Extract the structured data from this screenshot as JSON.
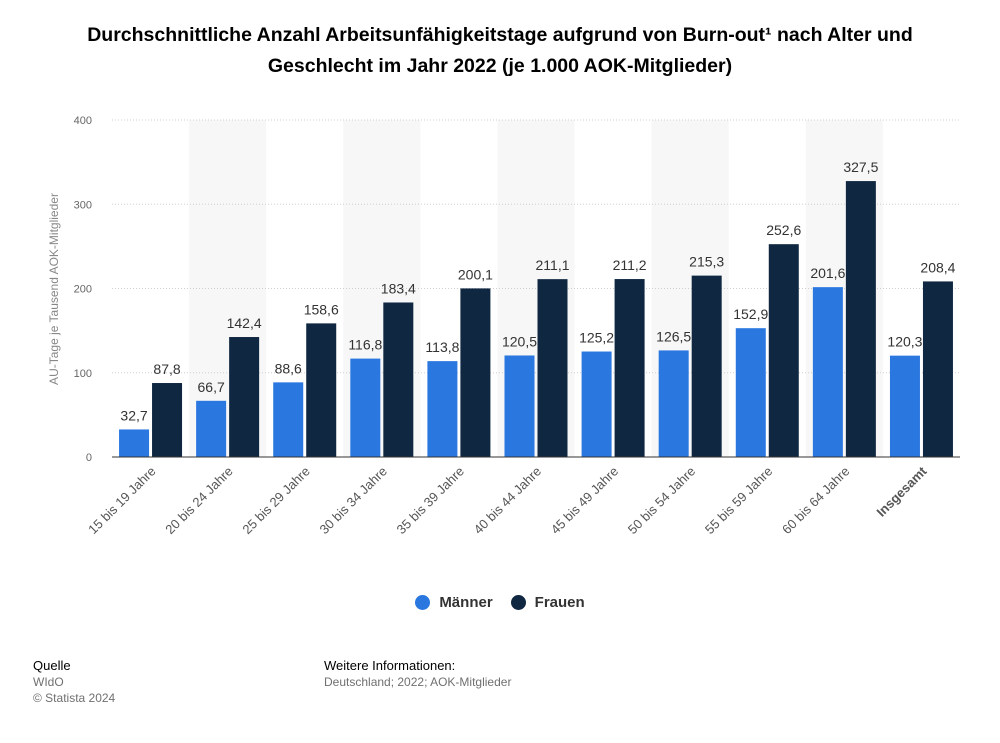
{
  "title": "Durchschnittliche Anzahl Arbeitsunfähigkeitstage aufgrund von Burn-out¹ nach Alter und Geschlecht im Jahr 2022 (je 1.000 AOK-Mitglieder)",
  "legend": [
    {
      "name": "Männer",
      "color": "#2a77e0"
    },
    {
      "name": "Frauen",
      "color": "#0f2740"
    }
  ],
  "footer": {
    "source_heading": "Quelle",
    "source_lines": [
      "WIdO",
      "© Statista 2024"
    ],
    "info_heading": "Weitere Informationen:",
    "info_text": "Deutschland; 2022; AOK-Mitglieder"
  },
  "chart_data": {
    "type": "bar",
    "title": "Durchschnittliche Anzahl Arbeitsunfähigkeitstage aufgrund von Burn-out¹ nach Alter und Geschlecht im Jahr 2022 (je 1.000 AOK-Mitglieder)",
    "xlabel": "",
    "ylabel": "AU-Tage je Tausend AOK-Mitglieder",
    "ylim": [
      0,
      400
    ],
    "yticks": [
      0,
      100,
      200,
      300,
      400
    ],
    "grid": true,
    "legend_position": "bottom",
    "categories": [
      "15 bis 19 Jahre",
      "20 bis 24 Jahre",
      "25 bis 29 Jahre",
      "30 bis 34 Jahre",
      "35 bis 39 Jahre",
      "40 bis 44 Jahre",
      "45 bis 49 Jahre",
      "50 bis 54 Jahre",
      "55 bis 59 Jahre",
      "60 bis 64 Jahre",
      "Insgesamt"
    ],
    "bold_categories": [
      "Insgesamt"
    ],
    "series": [
      {
        "name": "Männer",
        "color": "#2a77e0",
        "values": [
          32.7,
          66.7,
          88.6,
          116.8,
          113.8,
          120.5,
          125.2,
          126.5,
          152.9,
          201.6,
          120.3
        ],
        "labels": [
          "32,7",
          "66,7",
          "88,6",
          "116,8",
          "113,8",
          "120,5",
          "125,2",
          "126,5",
          "152,9",
          "201,6",
          "120,3"
        ]
      },
      {
        "name": "Frauen",
        "color": "#0f2740",
        "values": [
          87.8,
          142.4,
          158.6,
          183.4,
          200.1,
          211.1,
          211.2,
          215.3,
          252.6,
          327.5,
          208.4
        ],
        "labels": [
          "87,8",
          "142,4",
          "158,6",
          "183,4",
          "200,1",
          "211,1",
          "211,2",
          "215,3",
          "252,6",
          "327,5",
          "208,4"
        ]
      }
    ]
  }
}
